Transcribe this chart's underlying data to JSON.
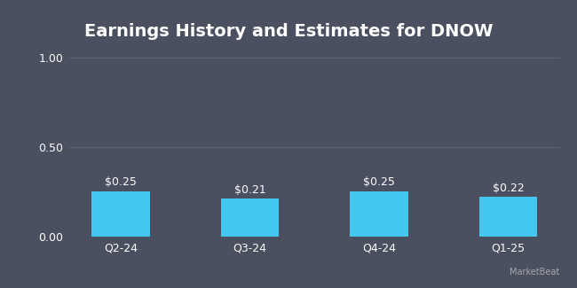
{
  "title": "Earnings History and Estimates for DNOW",
  "categories": [
    "Q2-24",
    "Q3-24",
    "Q4-24",
    "Q1-25"
  ],
  "values": [
    0.25,
    0.21,
    0.25,
    0.22
  ],
  "labels": [
    "$0.25",
    "$0.21",
    "$0.25",
    "$0.22"
  ],
  "bar_color": "#45c8f0",
  "background_color": "#4a5060",
  "text_color": "#ffffff",
  "grid_color": "#5a6275",
  "ylim": [
    0,
    1.0
  ],
  "yticks": [
    0.0,
    0.5,
    1.0
  ],
  "ytick_labels": [
    "0.00",
    "0.50",
    "1.00"
  ],
  "title_fontsize": 14,
  "label_fontsize": 9,
  "tick_fontsize": 9,
  "bar_width": 0.45
}
